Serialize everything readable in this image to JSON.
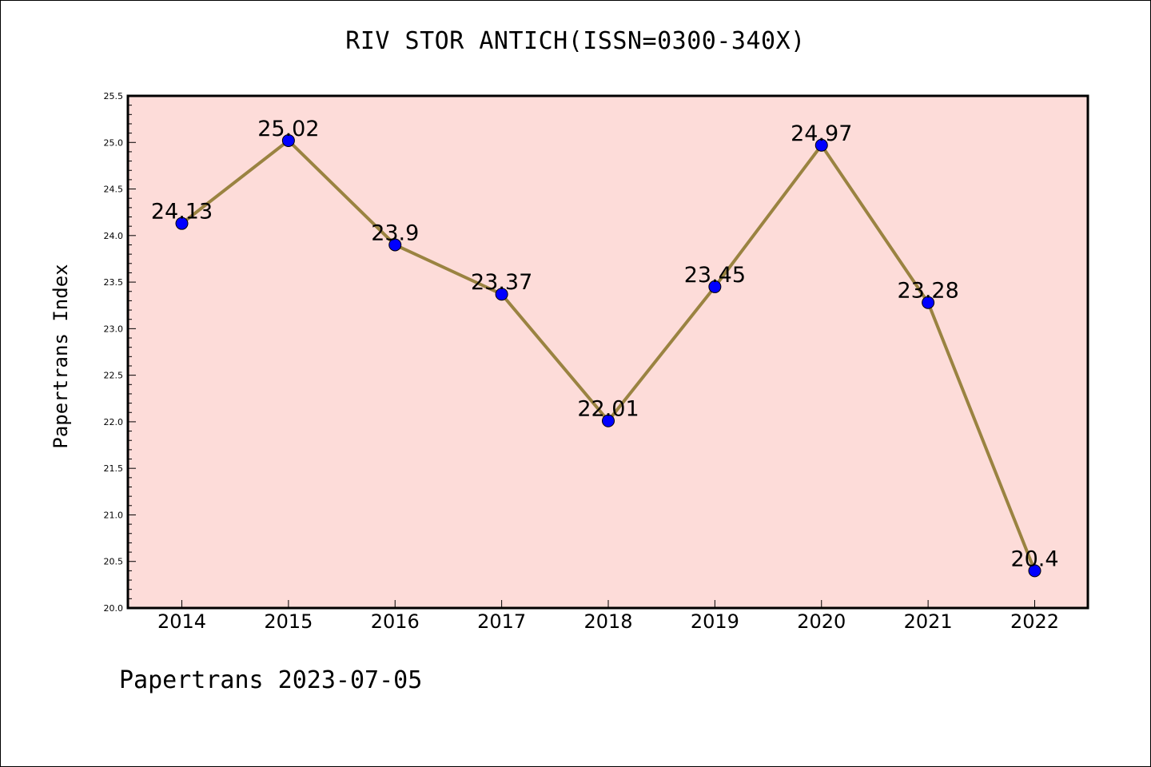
{
  "chart_data": {
    "type": "line",
    "title": "RIV STOR ANTICH(ISSN=0300-340X)",
    "ylabel": "Papertrans Index",
    "xlabel": "",
    "x": [
      "2014",
      "2015",
      "2016",
      "2017",
      "2018",
      "2019",
      "2020",
      "2021",
      "2022"
    ],
    "series": [
      {
        "values": [
          24.13,
          25.02,
          23.9,
          23.37,
          22.01,
          23.45,
          24.97,
          23.28,
          20.4
        ]
      }
    ],
    "data_labels": [
      "24.13",
      "25.02",
      "23.9",
      "23.37",
      "22.01",
      "23.45",
      "24.97",
      "23.28",
      "20.4"
    ],
    "ylim": [
      20.0,
      25.5
    ],
    "yticks": [
      "20.0",
      "20.5",
      "21.0",
      "21.5",
      "22.0",
      "22.5",
      "23.0",
      "23.5",
      "24.0",
      "24.5",
      "25.0",
      "25.5"
    ],
    "grid": false,
    "colors": {
      "plot_background": "#fddcd9",
      "line": "#9a8341",
      "marker": "#0000ff"
    }
  },
  "footer": "Papertrans 2023-07-05"
}
